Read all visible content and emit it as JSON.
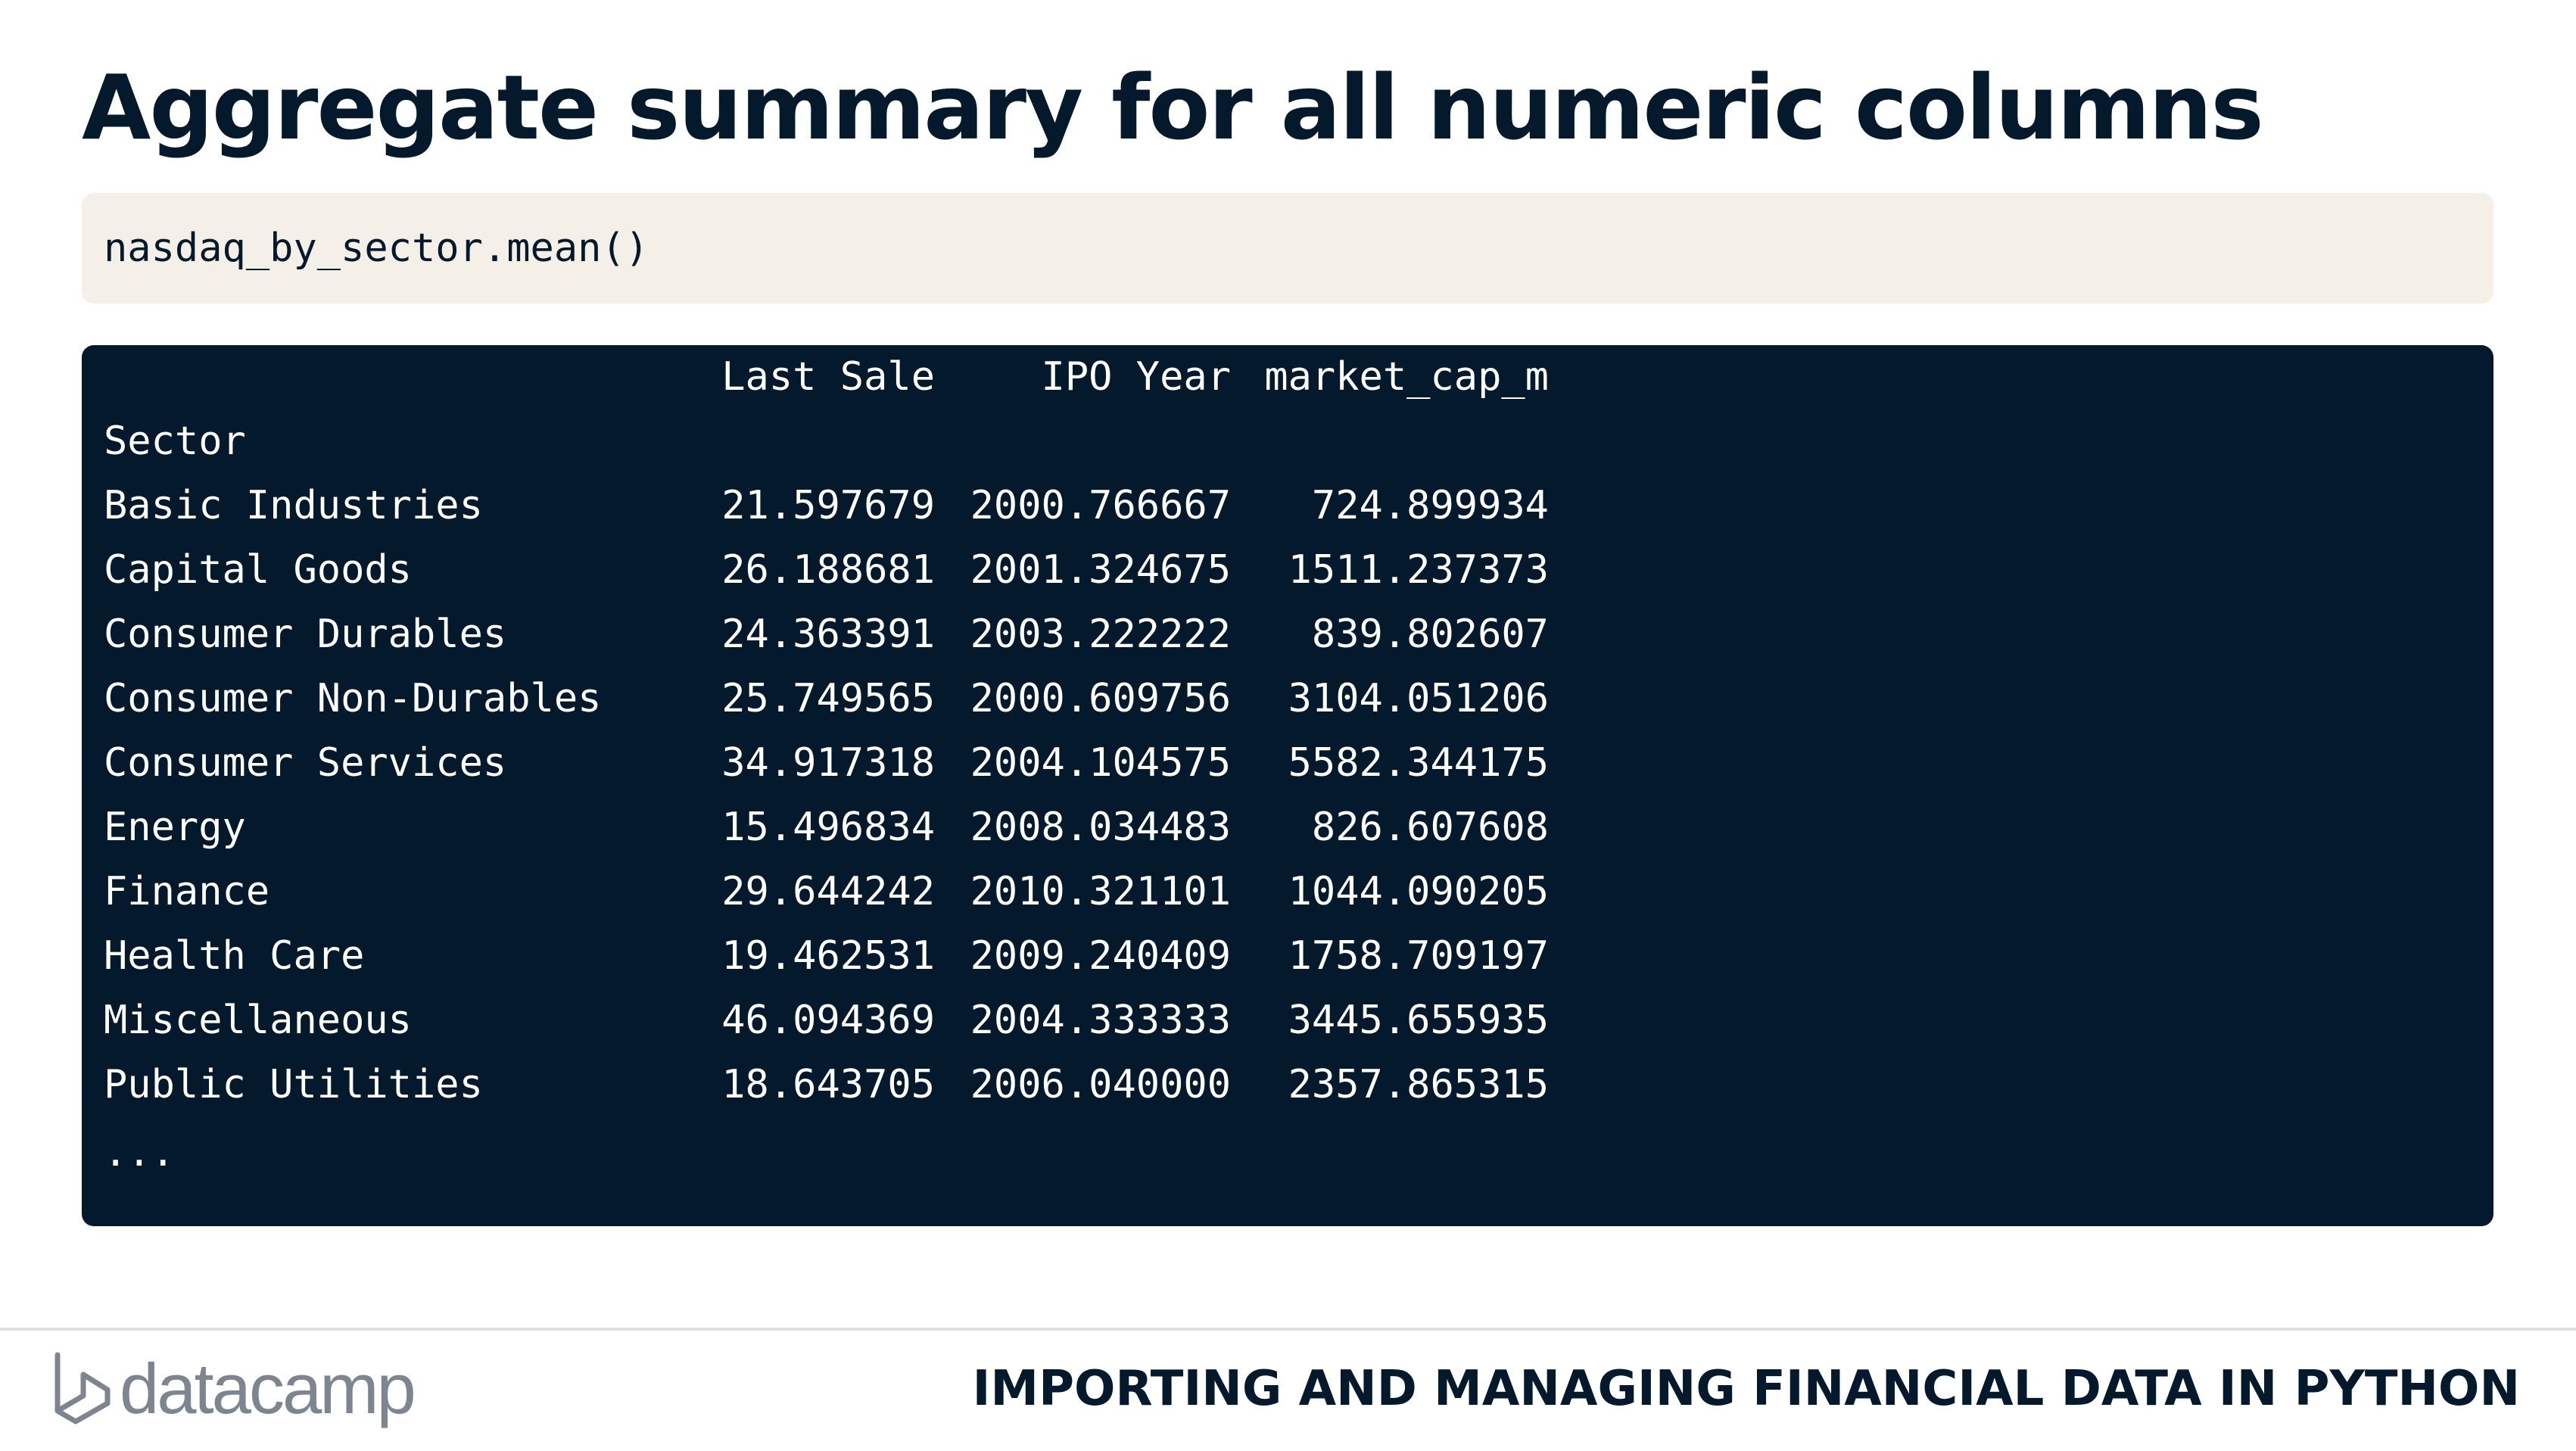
{
  "slide": {
    "title": "Aggregate summary for all numeric columns"
  },
  "code": {
    "input": "nasdaq_by_sector.mean()"
  },
  "output": {
    "columns": [
      "Last Sale",
      "IPO Year",
      "market_cap_m"
    ],
    "index_name": "Sector",
    "rows": [
      {
        "sector": "Basic Industries",
        "last_sale": "21.597679",
        "ipo_year": "2000.766667",
        "market_cap_m": "724.899934"
      },
      {
        "sector": "Capital Goods",
        "last_sale": "26.188681",
        "ipo_year": "2001.324675",
        "market_cap_m": "1511.237373"
      },
      {
        "sector": "Consumer Durables",
        "last_sale": "24.363391",
        "ipo_year": "2003.222222",
        "market_cap_m": "839.802607"
      },
      {
        "sector": "Consumer Non-Durables",
        "last_sale": "25.749565",
        "ipo_year": "2000.609756",
        "market_cap_m": "3104.051206"
      },
      {
        "sector": "Consumer Services",
        "last_sale": "34.917318",
        "ipo_year": "2004.104575",
        "market_cap_m": "5582.344175"
      },
      {
        "sector": "Energy",
        "last_sale": "15.496834",
        "ipo_year": "2008.034483",
        "market_cap_m": "826.607608"
      },
      {
        "sector": "Finance",
        "last_sale": "29.644242",
        "ipo_year": "2010.321101",
        "market_cap_m": "1044.090205"
      },
      {
        "sector": "Health Care",
        "last_sale": "19.462531",
        "ipo_year": "2009.240409",
        "market_cap_m": "1758.709197"
      },
      {
        "sector": "Miscellaneous",
        "last_sale": "46.094369",
        "ipo_year": "2004.333333",
        "market_cap_m": "3445.655935"
      },
      {
        "sector": "Public Utilities",
        "last_sale": "18.643705",
        "ipo_year": "2006.040000",
        "market_cap_m": "2357.865315"
      }
    ],
    "ellipsis": "..."
  },
  "footer": {
    "logo_text": "datacamp",
    "logo_icon": "datacamp-logo-icon",
    "course_title": "IMPORTING AND MANAGING FINANCIAL DATA IN PYTHON"
  },
  "colors": {
    "navy": "#05192D",
    "code_bg": "#F4F0E8",
    "logo_gray": "#7D8590"
  }
}
